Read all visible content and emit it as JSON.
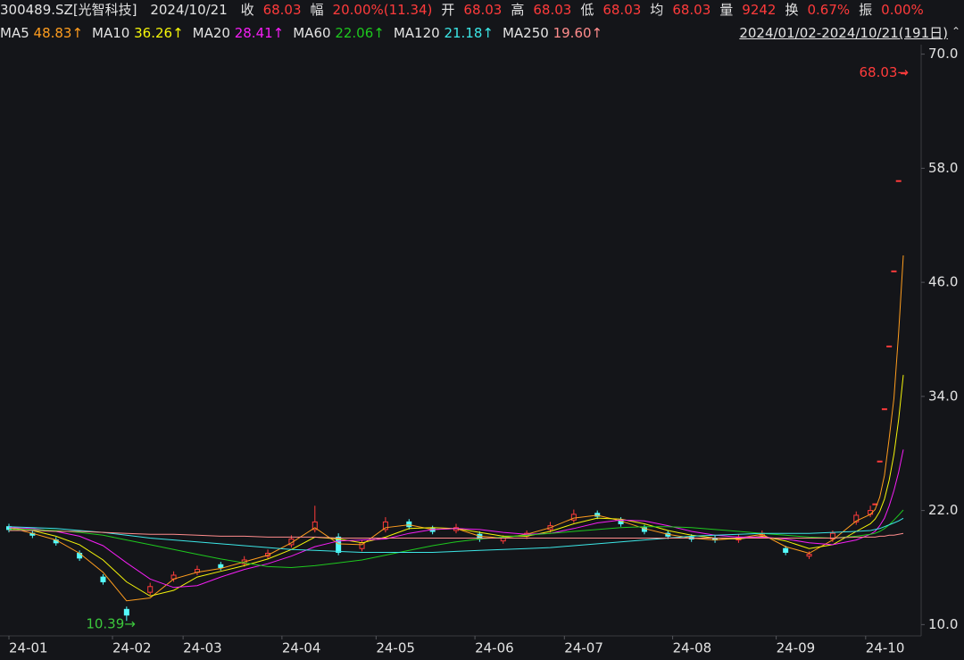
{
  "header": {
    "symbol": "300489.SZ[光智科技]",
    "date": "2024/10/21",
    "quotes": [
      {
        "label": "收",
        "value": "68.03"
      },
      {
        "label": "幅",
        "value": "20.00%(11.34)"
      },
      {
        "label": "开",
        "value": "68.03"
      },
      {
        "label": "高",
        "value": "68.03"
      },
      {
        "label": "低",
        "value": "68.03"
      },
      {
        "label": "均",
        "value": "68.03"
      },
      {
        "label": "量",
        "value": "9242"
      },
      {
        "label": "换",
        "value": "0.67%"
      },
      {
        "label": "振",
        "value": "0.00%"
      }
    ],
    "range": "2024/01/02-2024/10/21(191日)"
  },
  "chart_data": {
    "type": "candlestick",
    "x": [
      0,
      5,
      10,
      15,
      20,
      25,
      30,
      35,
      40,
      45,
      50,
      55,
      60,
      65,
      70,
      75,
      80,
      85,
      90,
      95,
      100,
      105,
      110,
      115,
      120,
      125,
      130,
      135,
      140,
      145,
      150,
      155,
      160,
      165,
      170,
      175,
      180,
      183,
      184,
      185,
      186,
      187,
      188,
      189,
      190
    ],
    "xlim": [
      0,
      190
    ],
    "xticks": [
      {
        "value": 0,
        "label": "24-01"
      },
      {
        "value": 22,
        "label": "24-02"
      },
      {
        "value": 37,
        "label": "24-03"
      },
      {
        "value": 58,
        "label": "24-04"
      },
      {
        "value": 78,
        "label": "24-05"
      },
      {
        "value": 99,
        "label": "24-06"
      },
      {
        "value": 118,
        "label": "24-07"
      },
      {
        "value": 141,
        "label": "24-08"
      },
      {
        "value": 163,
        "label": "24-09"
      },
      {
        "value": 182,
        "label": "24-10"
      }
    ],
    "ylim": [
      9,
      71
    ],
    "yticks": [
      {
        "value": 10,
        "label": "10.0"
      },
      {
        "value": 22,
        "label": "22.0"
      },
      {
        "value": 34,
        "label": "34.0"
      },
      {
        "value": 46,
        "label": "46.0"
      },
      {
        "value": 58,
        "label": "58.0"
      },
      {
        "value": 70,
        "label": "70.0"
      }
    ],
    "open": [
      20.3,
      19.6,
      18.9,
      17.5,
      15.0,
      11.6,
      13.4,
      14.8,
      15.5,
      16.3,
      16.4,
      17.2,
      18.4,
      20.0,
      19.2,
      18.0,
      20.0,
      20.8,
      20.1,
      19.9,
      19.5,
      18.8,
      19.3,
      20.0,
      21.0,
      21.7,
      21.0,
      20.2,
      19.6,
      19.2,
      19.1,
      18.9,
      19.4,
      18.0,
      17.2,
      19.0,
      20.8,
      21.6,
      22.7,
      27.2,
      32.7,
      39.3,
      47.2,
      56.7,
      68.03
    ],
    "high": [
      20.6,
      19.9,
      19.2,
      17.8,
      15.3,
      11.9,
      14.4,
      15.6,
      16.2,
      16.6,
      17.2,
      17.9,
      19.4,
      22.5,
      19.6,
      18.9,
      21.3,
      21.1,
      20.4,
      20.6,
      19.8,
      19.4,
      19.9,
      20.8,
      22.1,
      22.0,
      21.3,
      20.5,
      19.9,
      19.5,
      19.4,
      19.5,
      19.9,
      18.3,
      17.7,
      19.9,
      21.9,
      22.5,
      22.7,
      27.2,
      32.7,
      39.3,
      47.2,
      56.7,
      68.03
    ],
    "low": [
      19.7,
      19.1,
      18.3,
      16.7,
      14.2,
      10.39,
      13.1,
      14.5,
      15.2,
      15.7,
      16.1,
      16.9,
      18.1,
      19.7,
      17.3,
      17.7,
      19.7,
      20.0,
      19.5,
      19.6,
      18.7,
      18.5,
      19.0,
      19.7,
      20.7,
      21.1,
      20.3,
      19.5,
      19.0,
      18.7,
      18.6,
      18.6,
      19.1,
      17.3,
      16.9,
      18.7,
      20.5,
      21.3,
      22.7,
      27.2,
      32.7,
      39.3,
      47.2,
      56.7,
      68.03
    ],
    "close": [
      20.0,
      19.4,
      18.6,
      17.0,
      14.5,
      11.0,
      14.0,
      15.2,
      15.8,
      16.0,
      16.8,
      17.5,
      19.0,
      20.8,
      17.6,
      18.6,
      20.8,
      20.3,
      19.8,
      20.2,
      19.0,
      19.1,
      19.6,
      20.4,
      21.6,
      21.4,
      20.6,
      19.8,
      19.3,
      19.0,
      18.9,
      19.2,
      19.6,
      17.6,
      17.4,
      19.6,
      21.5,
      22.0,
      22.7,
      27.2,
      32.7,
      39.3,
      47.2,
      56.7,
      68.03
    ],
    "up_color": "#ff3b3b",
    "down_color": "#54fcfc",
    "series": [
      {
        "name": "MA5",
        "current_label": "48.83↑",
        "color": "#ff9d1e",
        "values": [
          20.2,
          19.6,
          18.9,
          17.5,
          15.5,
          12.5,
          12.8,
          14.8,
          15.5,
          15.9,
          16.6,
          17.3,
          18.6,
          20.2,
          18.5,
          18.4,
          20.2,
          20.5,
          20.0,
          20.1,
          19.3,
          19.1,
          19.5,
          20.2,
          21.2,
          21.5,
          20.9,
          20.1,
          19.5,
          19.1,
          18.9,
          19.1,
          19.5,
          18.2,
          17.5,
          18.9,
          20.9,
          21.6,
          22.1,
          23.4,
          25.7,
          29.6,
          33.8,
          40.6,
          48.83
        ]
      },
      {
        "name": "MA10",
        "current_label": "36.26↑",
        "color": "#f5f50a",
        "values": [
          20.2,
          19.9,
          19.3,
          18.4,
          16.8,
          14.5,
          13.0,
          13.6,
          15.0,
          15.6,
          16.2,
          16.9,
          17.9,
          19.2,
          19.0,
          18.6,
          19.2,
          20.1,
          20.2,
          20.1,
          19.7,
          19.3,
          19.3,
          19.8,
          20.6,
          21.2,
          21.1,
          20.6,
          19.9,
          19.4,
          19.1,
          19.0,
          19.3,
          18.8,
          18.0,
          18.4,
          19.8,
          20.6,
          21.1,
          21.9,
          23.2,
          25.2,
          27.9,
          31.5,
          36.26
        ]
      },
      {
        "name": "MA20",
        "current_label": "28.41↑",
        "color": "#f51ef5",
        "values": [
          20.2,
          20.1,
          19.8,
          19.3,
          18.3,
          16.5,
          14.8,
          13.9,
          14.1,
          15.0,
          15.8,
          16.4,
          17.2,
          18.2,
          18.8,
          18.9,
          19.0,
          19.6,
          20.0,
          20.1,
          20.0,
          19.7,
          19.5,
          19.6,
          20.1,
          20.7,
          21.0,
          20.9,
          20.4,
          19.8,
          19.4,
          19.2,
          19.2,
          19.0,
          18.6,
          18.4,
          18.9,
          19.5,
          19.8,
          20.4,
          21.2,
          22.5,
          24.1,
          26.0,
          28.41
        ]
      },
      {
        "name": "MA60",
        "current_label": "22.06↑",
        "color": "#1ec81e",
        "values": [
          20.0,
          20.0,
          19.9,
          19.7,
          19.4,
          18.9,
          18.4,
          17.9,
          17.4,
          16.9,
          16.5,
          16.1,
          16.0,
          16.2,
          16.5,
          16.8,
          17.3,
          17.8,
          18.3,
          18.7,
          19.0,
          19.2,
          19.4,
          19.6,
          19.8,
          20.0,
          20.2,
          20.3,
          20.3,
          20.2,
          20.0,
          19.8,
          19.6,
          19.4,
          19.2,
          19.1,
          19.3,
          19.5,
          19.6,
          19.8,
          20.1,
          20.5,
          21.0,
          21.5,
          22.06
        ]
      },
      {
        "name": "MA120",
        "current_label": "21.18↑",
        "color": "#3ce6e6",
        "values": [
          20.3,
          20.2,
          20.1,
          19.9,
          19.7,
          19.4,
          19.1,
          18.9,
          18.7,
          18.5,
          18.3,
          18.1,
          17.9,
          17.8,
          17.7,
          17.6,
          17.6,
          17.6,
          17.6,
          17.7,
          17.8,
          17.9,
          18.0,
          18.1,
          18.3,
          18.5,
          18.7,
          18.9,
          19.1,
          19.3,
          19.4,
          19.5,
          19.6,
          19.6,
          19.6,
          19.7,
          19.8,
          19.9,
          20.0,
          20.1,
          20.3,
          20.5,
          20.7,
          20.9,
          21.18
        ]
      },
      {
        "name": "MA250",
        "current_label": "19.60↑",
        "color": "#ff8c8c",
        "values": [
          19.9,
          19.9,
          19.8,
          19.8,
          19.7,
          19.6,
          19.5,
          19.5,
          19.4,
          19.3,
          19.3,
          19.2,
          19.2,
          19.2,
          19.1,
          19.1,
          19.1,
          19.1,
          19.1,
          19.1,
          19.1,
          19.1,
          19.1,
          19.1,
          19.1,
          19.1,
          19.1,
          19.1,
          19.1,
          19.1,
          19.1,
          19.1,
          19.1,
          19.1,
          19.1,
          19.1,
          19.2,
          19.2,
          19.2,
          19.3,
          19.3,
          19.4,
          19.4,
          19.5,
          19.6
        ]
      }
    ],
    "max_label": {
      "value": 68.03,
      "label": "68.03→",
      "color": "#ff3b3b"
    },
    "min_label": {
      "value": 10.39,
      "label": "10.39→",
      "color": "#3cc83c"
    }
  }
}
